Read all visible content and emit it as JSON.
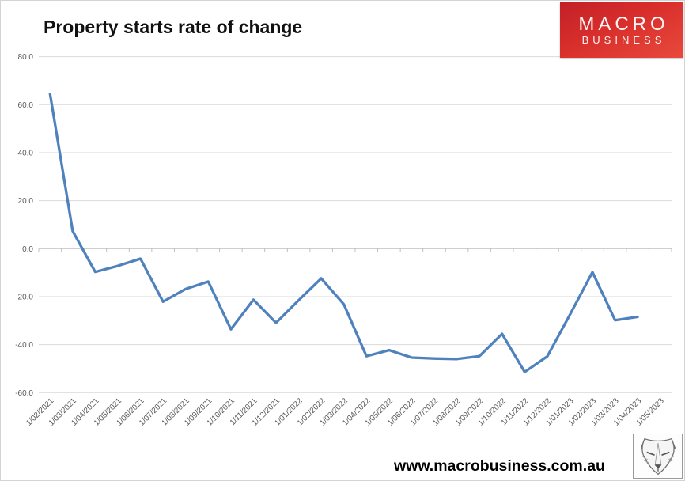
{
  "page": {
    "title": "Property starts rate of change"
  },
  "logo": {
    "line1": "MACRO",
    "line2": "BUSINESS"
  },
  "footer": {
    "url": "www.macrobusiness.com.au",
    "fox_image": "fox-sketch"
  },
  "colors": {
    "series_blue": "#4F81BD",
    "gridline": "#d9d9d9",
    "zero_axis": "#bfbfbf",
    "label_gray": "#595959",
    "logo_red": "#d92f2c"
  },
  "chart_data": {
    "type": "line",
    "title": "Property starts rate of change",
    "xlabel": "",
    "ylabel": "",
    "legend": "none",
    "grid": "horizontal",
    "ylim": [
      -60,
      80
    ],
    "yticks": [
      80,
      60,
      40,
      20,
      0,
      -20,
      -40,
      -60
    ],
    "categories": [
      "1/02/2021",
      "1/03/2021",
      "1/04/2021",
      "1/05/2021",
      "1/06/2021",
      "1/07/2021",
      "1/08/2021",
      "1/09/2021",
      "1/10/2021",
      "1/11/2021",
      "1/12/2021",
      "1/01/2022",
      "1/02/2022",
      "1/03/2022",
      "1/04/2022",
      "1/05/2022",
      "1/06/2022",
      "1/07/2022",
      "1/08/2022",
      "1/09/2022",
      "1/10/2022",
      "1/11/2022",
      "1/12/2022",
      "1/01/2023",
      "1/02/2023",
      "1/03/2023",
      "1/04/2023",
      "1/05/2023"
    ],
    "series": [
      {
        "name": "Property starts rate of change",
        "color": "#4F81BD",
        "values": [
          64.4,
          7.3,
          -9.7,
          -7.2,
          -4.2,
          -22.1,
          -16.8,
          -13.7,
          -33.6,
          -21.3,
          -30.9,
          -21.5,
          -12.4,
          -23.2,
          -44.8,
          -42.3,
          -45.4,
          -45.8,
          -46.0,
          -44.8,
          -35.5,
          -51.4,
          -44.9,
          -27.6,
          -9.8,
          -29.8,
          -28.4,
          null
        ]
      }
    ]
  }
}
